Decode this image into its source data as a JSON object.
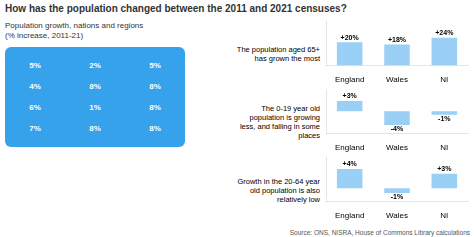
{
  "title": "How has the population changed between the 2011 and 2021 censuses?",
  "subtitle": "Population growth, nations and regions\n(% increase, 2011-21)",
  "annotations": [
    "5%",
    "2%",
    "5%",
    "4%",
    "8%",
    "8%",
    "6%",
    "1%",
    "8%",
    "7%",
    "8%",
    "8%"
  ],
  "source": "Source: ONS, NISRA, House of Commons Library calculations",
  "chart_data": [
    {
      "type": "bar",
      "title": "The population aged 65+\nhas grown the most",
      "categories": [
        "England",
        "Wales",
        "NI"
      ],
      "values": [
        20,
        18,
        24
      ],
      "value_labels": [
        "+20%",
        "+18%",
        "+24%"
      ],
      "data_labels": true,
      "ylim": [
        0,
        38.4
      ],
      "tick_labels": "x"
    },
    {
      "type": "bar",
      "title": "The 0-19 year old\npopulation is growing\nless, and falling in some\nplaces",
      "categories": [
        "England",
        "Wales",
        "NI"
      ],
      "values": [
        3,
        -4,
        -1
      ],
      "value_labels": [
        "+3%",
        "-4%",
        "-1%"
      ],
      "data_labels": true,
      "ylim": [
        -6.45,
        6.5
      ],
      "tick_labels": "x"
    },
    {
      "type": "bar",
      "title": "Growth in the 20-64 year\nold population is also\nrelatively low",
      "categories": [
        "England",
        "Wales",
        "NI"
      ],
      "values": [
        4,
        -1,
        3
      ],
      "value_labels": [
        "+4%",
        "-1%",
        "+3%"
      ],
      "data_labels": true,
      "ylim": [
        -2.75,
        6.5
      ],
      "tick_labels": "x"
    }
  ]
}
